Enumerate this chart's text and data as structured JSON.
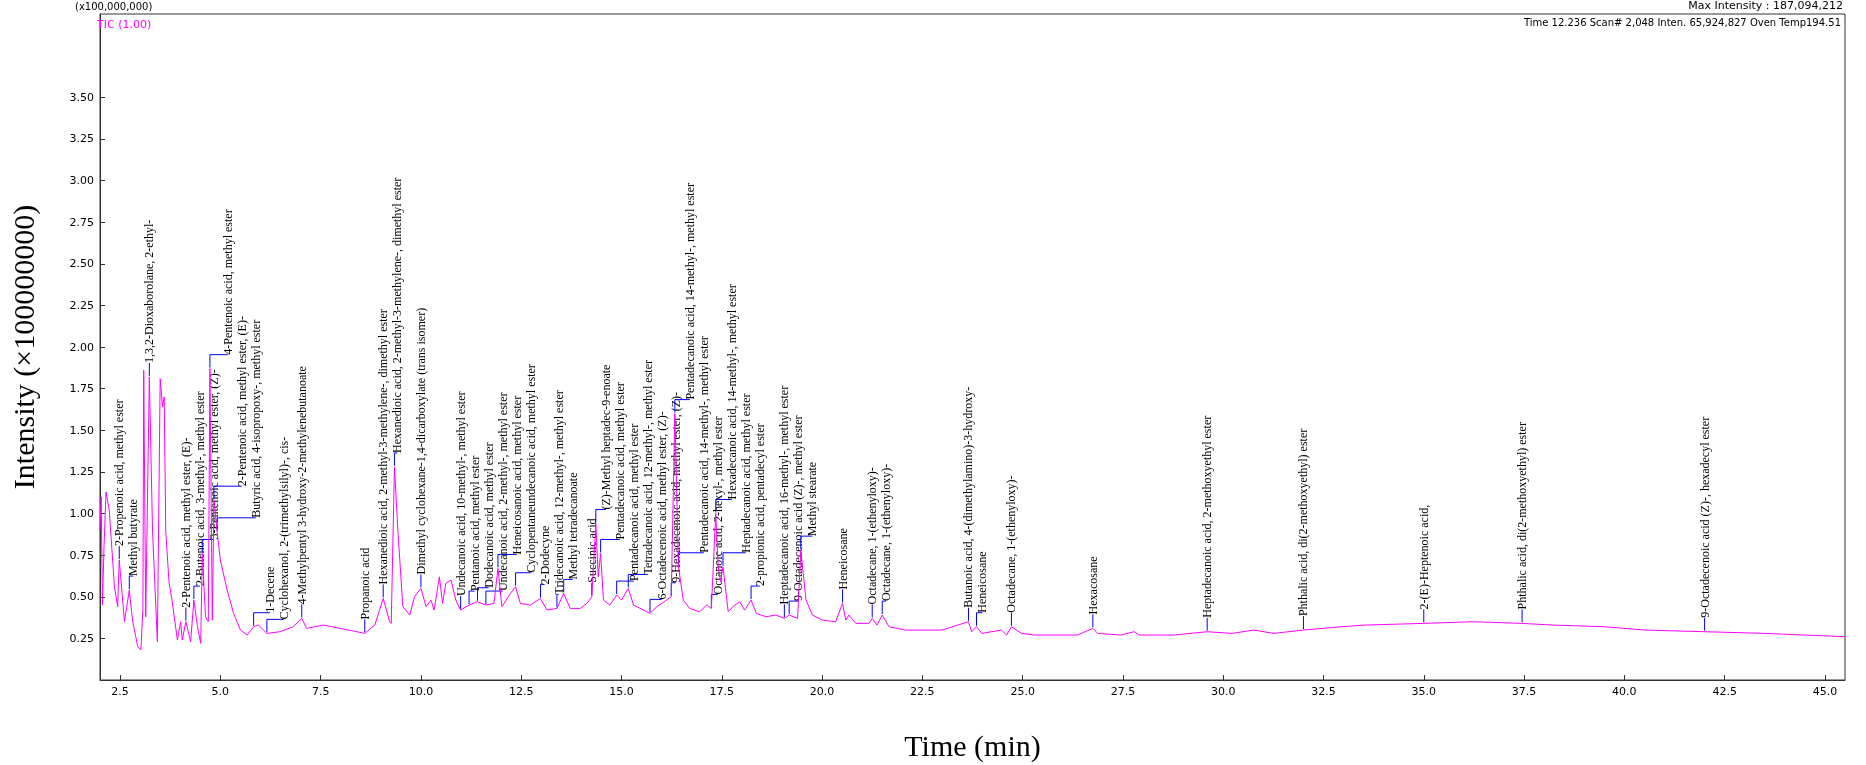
{
  "chart_data": {
    "type": "line",
    "xlabel": "Time (min)",
    "ylabel": "Intensity (×100000000)",
    "xlim": [
      2.0,
      45.5
    ],
    "ylim": [
      0,
      4.0
    ],
    "xticks": [
      2.5,
      {
        "value": 5,
        "label": "5.0"
      },
      7.5,
      {
        "value": 10,
        "label": "10.0"
      },
      12.5,
      {
        "value": 15,
        "label": "15.0"
      },
      17.5,
      {
        "value": 20,
        "label": "20.0"
      },
      22.5,
      {
        "value": 25,
        "label": "25.0"
      },
      27.5,
      {
        "value": 30,
        "label": "30.0"
      },
      32.5,
      {
        "value": 35,
        "label": "35.0"
      },
      37.5,
      {
        "value": 40,
        "label": "40.0"
      },
      42.5,
      {
        "value": 45,
        "label": "45.0"
      }
    ],
    "yticks": [
      0.25,
      {
        "value": 0.5,
        "label": "0.50"
      },
      0.75,
      {
        "value": 1,
        "label": "1.00"
      },
      1.25,
      {
        "value": 1.5,
        "label": "1.50"
      },
      1.75,
      {
        "value": 2,
        "label": "2.00"
      },
      2.25,
      {
        "value": 2.5,
        "label": "2.50"
      },
      2.75,
      {
        "value": 3,
        "label": "3.00"
      },
      3.25,
      {
        "value": 3.5,
        "label": "3.50"
      }
    ],
    "grid": false,
    "legend": "top left",
    "marker": "none",
    "line_style": "solid",
    "series": [
      {
        "name": "TIC (1.00)",
        "color": "#ff00ff",
        "x": [
          2.0,
          2.03,
          2.06,
          2.1,
          2.15,
          2.23,
          2.36,
          2.44,
          2.48,
          2.61,
          2.73,
          2.81,
          2.94,
          3.02,
          3.07,
          3.09,
          3.14,
          3.23,
          3.31,
          3.43,
          3.5,
          3.56,
          3.6,
          3.64,
          3.72,
          3.8,
          3.93,
          4.01,
          4.05,
          4.14,
          4.26,
          4.34,
          4.43,
          4.51,
          4.55,
          4.63,
          4.7,
          4.74,
          4.8,
          4.84,
          4.92,
          5.0,
          5.17,
          5.33,
          5.5,
          5.67,
          5.83,
          5.95,
          6.16,
          6.49,
          6.82,
          7.03,
          7.15,
          7.57,
          7.98,
          8.4,
          8.6,
          8.85,
          9.06,
          9.22,
          9.26,
          9.34,
          9.43,
          9.55,
          9.72,
          9.84,
          10.0,
          10.13,
          10.25,
          10.33,
          10.46,
          10.54,
          10.62,
          10.75,
          10.87,
          10.99,
          11.2,
          11.41,
          11.62,
          11.82,
          11.92,
          12.02,
          12.23,
          12.36,
          12.48,
          12.73,
          12.98,
          13.14,
          13.39,
          13.56,
          13.72,
          13.97,
          14.14,
          14.26,
          14.36,
          14.42,
          14.48,
          14.55,
          14.71,
          14.88,
          15.0,
          15.17,
          15.3,
          15.55,
          15.71,
          15.88,
          16.12,
          16.24,
          16.33,
          16.42,
          16.54,
          16.7,
          16.95,
          17.12,
          17.24,
          17.35,
          17.41,
          17.47,
          17.53,
          17.66,
          17.82,
          17.95,
          18.07,
          18.23,
          18.36,
          18.6,
          18.85,
          19.06,
          19.18,
          19.39,
          19.47,
          19.6,
          19.76,
          20.01,
          20.34,
          20.51,
          20.59,
          20.67,
          20.84,
          21.17,
          21.25,
          21.37,
          21.5,
          21.67,
          22.08,
          22.99,
          23.65,
          23.73,
          23.85,
          23.98,
          24.47,
          24.6,
          24.72,
          24.97,
          25.3,
          26.37,
          26.75,
          26.87,
          27.45,
          27.78,
          27.9,
          28.77,
          29.6,
          30.22,
          30.76,
          31.26,
          32.0,
          32.96,
          33.54,
          35.0,
          36.21,
          37.45,
          38.2,
          39.5,
          40.5,
          42.0,
          43.5,
          45.5
        ],
        "values": [
          0.9,
          1.1,
          0.45,
          0.8,
          1.13,
          1.02,
          0.56,
          0.44,
          0.72,
          0.35,
          0.54,
          0.36,
          0.2,
          0.18,
          0.44,
          1.86,
          0.38,
          1.82,
          0.89,
          0.23,
          1.81,
          1.64,
          1.7,
          0.89,
          0.59,
          0.47,
          0.24,
          0.35,
          0.24,
          0.35,
          0.23,
          0.48,
          0.32,
          0.22,
          0.76,
          0.38,
          0.35,
          1.87,
          0.36,
          1.08,
          0.89,
          0.72,
          0.54,
          0.4,
          0.3,
          0.27,
          0.32,
          0.33,
          0.28,
          0.29,
          0.32,
          0.37,
          0.31,
          0.33,
          0.31,
          0.29,
          0.28,
          0.33,
          0.49,
          0.35,
          0.34,
          1.28,
          0.88,
          0.44,
          0.39,
          0.5,
          0.55,
          0.44,
          0.48,
          0.42,
          0.62,
          0.46,
          0.58,
          0.6,
          0.48,
          0.42,
          0.45,
          0.47,
          0.45,
          0.46,
          0.67,
          0.44,
          0.52,
          0.56,
          0.46,
          0.45,
          0.49,
          0.42,
          0.43,
          0.52,
          0.43,
          0.43,
          0.46,
          0.5,
          0.94,
          0.62,
          0.76,
          0.48,
          0.45,
          0.51,
          0.48,
          0.55,
          0.45,
          0.42,
          0.4,
          0.44,
          0.48,
          0.5,
          1.6,
          0.68,
          0.48,
          0.43,
          0.41,
          0.45,
          0.43,
          1.0,
          0.68,
          0.59,
          0.68,
          0.41,
          0.45,
          0.47,
          0.42,
          0.48,
          0.4,
          0.38,
          0.39,
          0.37,
          0.39,
          0.37,
          0.78,
          0.48,
          0.39,
          0.36,
          0.35,
          0.46,
          0.36,
          0.39,
          0.34,
          0.34,
          0.37,
          0.33,
          0.39,
          0.32,
          0.3,
          0.3,
          0.35,
          0.29,
          0.32,
          0.28,
          0.3,
          0.27,
          0.32,
          0.28,
          0.27,
          0.27,
          0.31,
          0.28,
          0.27,
          0.29,
          0.27,
          0.27,
          0.29,
          0.28,
          0.3,
          0.28,
          0.3,
          0.32,
          0.33,
          0.34,
          0.35,
          0.34,
          0.33,
          0.32,
          0.3,
          0.29,
          0.28,
          0.26
        ]
      }
    ],
    "annotations": [
      "(x100,000,000)",
      "Max Intensity : 187,094,212",
      "Time 12.236 Scan# 2,048 Inten. 65,924,827 Oven Temp194.51",
      {
        "text": "2-Propenoic acid, methyl ester",
        "x": 2.48,
        "y": 0.72
      },
      {
        "text": "Methyl butyrate",
        "x": 2.73,
        "y": 0.54
      },
      {
        "text": "1,3,2-Dioxaborolane, 2-ethyl-",
        "x": 3.23,
        "y": 1.82
      },
      {
        "text": "2-Pentenoic acid, methyl ester, (E)-",
        "x": 4.14,
        "y": 0.35
      },
      {
        "text": "2-Butenoic acid, 3-methyl-, methyl ester",
        "x": 4.34,
        "y": 0.48
      },
      {
        "text": "3-Pentenoic acid, methyl ester, (Z)-",
        "x": 4.55,
        "y": 0.76
      },
      {
        "text": "4-Pentenoic acid, methyl ester",
        "x": 4.74,
        "y": 1.87
      },
      {
        "text": "2-Pentenoic acid, methyl ester, (E)-",
        "x": 4.84,
        "y": 1.08
      },
      {
        "text": "Butyric acid, 4-isopropoxy-, methyl ester",
        "x": 4.92,
        "y": 0.89
      },
      {
        "text": "1-Decene",
        "x": 5.83,
        "y": 0.32
      },
      {
        "text": "Cyclohexanol, 2-(trimethylsilyl)-, cis-",
        "x": 6.16,
        "y": 0.28
      },
      {
        "text": "4-Methylpentyl 3-hydroxy-2-methylenebutanoate",
        "x": 7.03,
        "y": 0.37
      },
      {
        "text": "Propanoic acid",
        "x": 8.6,
        "y": 0.28
      },
      {
        "text": "Hexanedioic acid, 2-methyl-3-methylene-, dimethyl ester",
        "x": 9.06,
        "y": 0.49
      },
      {
        "text": "Hexanedioic acid, 2-methyl-3-methylene-, dimethyl ester",
        "x": 9.34,
        "y": 1.28
      },
      {
        "text": "Dimethyl cyclohexane-1,4-dicarboxylate (trans isomer)",
        "x": 10.0,
        "y": 0.55
      },
      {
        "text": "Undecanoic acid, 10-methyl-, methyl ester",
        "x": 10.99,
        "y": 0.42
      },
      {
        "text": "Pentanoic acid, methyl ester",
        "x": 11.2,
        "y": 0.45
      },
      {
        "text": "Dodecanoic acid, methyl ester",
        "x": 11.41,
        "y": 0.47
      },
      {
        "text": "Undecanoic acid, 2-methyl-, methyl ester",
        "x": 11.62,
        "y": 0.45
      },
      {
        "text": "Heneicosanoic acid, methyl ester",
        "x": 11.92,
        "y": 0.67
      },
      {
        "text": "Cyclopentaneundecanoic acid, methyl ester",
        "x": 12.36,
        "y": 0.56
      },
      {
        "text": "2-Dodecyne",
        "x": 12.98,
        "y": 0.49
      },
      {
        "text": "Tridecanoic acid, 12-methyl-, methyl ester",
        "x": 13.39,
        "y": 0.43
      },
      {
        "text": "Methyl tetradecanoate",
        "x": 13.56,
        "y": 0.52
      },
      {
        "text": "Succinic acid",
        "x": 14.26,
        "y": 0.5
      },
      {
        "text": "(Z)-Methyl heptadec-9-enoate",
        "x": 14.36,
        "y": 0.94
      },
      {
        "text": "Pentadecanoic acid, methyl ester",
        "x": 14.48,
        "y": 0.76
      },
      {
        "text": "Pentadecanoic acid, methyl ester",
        "x": 14.88,
        "y": 0.51
      },
      {
        "text": "Tetradecanoic acid, 12-methyl-, methyl ester",
        "x": 15.17,
        "y": 0.55
      },
      {
        "text": "6-Octadecenoic acid, methyl ester, (Z)-",
        "x": 15.71,
        "y": 0.4
      },
      {
        "text": "Pentadecanoic acid, 14-methyl-, methyl ester",
        "x": 16.33,
        "y": 1.6
      },
      {
        "text": "9-Hexadecenoic acid, methyl ester, (Z)-",
        "x": 16.24,
        "y": 0.5
      },
      {
        "text": "Pentadecanoic acid, 14-methyl-, methyl ester",
        "x": 16.42,
        "y": 0.68
      },
      {
        "text": "Octanoic acid, 2-hexyl-, methyl ester",
        "x": 17.24,
        "y": 0.43
      },
      {
        "text": "Hexadecanoic acid, 14-methyl-, methyl ester",
        "x": 17.35,
        "y": 1.0
      },
      {
        "text": "Heptadecanoic acid, methyl ester",
        "x": 17.53,
        "y": 0.68
      },
      {
        "text": "2-propionic acid, pentadecyl ester",
        "x": 18.23,
        "y": 0.48
      },
      {
        "text": "Heptadecanoic acid, 16-methyl-, methyl ester",
        "x": 19.06,
        "y": 0.37
      },
      {
        "text": "9-Octadecenoic acid (Z)-, methyl ester",
        "x": 19.18,
        "y": 0.39
      },
      {
        "text": "Methyl stearate",
        "x": 19.47,
        "y": 0.78
      },
      {
        "text": "Heneicosane",
        "x": 20.51,
        "y": 0.46
      },
      {
        "text": "Octadecane, 1-(ethenyloxy)-",
        "x": 21.25,
        "y": 0.37
      },
      {
        "text": "Octadecane, 1-(ethenyloxy)-",
        "x": 21.5,
        "y": 0.39
      },
      {
        "text": "Butanoic acid, 4-(dimethylamino)-3-hydroxy-",
        "x": 23.65,
        "y": 0.35
      },
      {
        "text": "Heneicosane",
        "x": 23.85,
        "y": 0.32
      },
      {
        "text": "Octadecane, 1-(ethenyloxy)-",
        "x": 24.72,
        "y": 0.32
      },
      {
        "text": "Hexacosane",
        "x": 26.75,
        "y": 0.31
      },
      {
        "text": "Heptadecanoic acid, 2-methoxyethyl ester",
        "x": 29.6,
        "y": 0.29
      },
      {
        "text": "Phthalic acid, di(2-methoxyethyl) ester",
        "x": 32.0,
        "y": 0.3
      },
      {
        "text": "2-(E)-Heptenoic acid,",
        "x": 35.0,
        "y": 0.34
      },
      {
        "text": "Phthalic acid, di(2-methoxyethyl) ester",
        "x": 37.45,
        "y": 0.34
      },
      {
        "text": "9-Octadecenoic acid (Z)-, hexadecyl ester",
        "x": 42.0,
        "y": 0.29
      }
    ]
  }
}
